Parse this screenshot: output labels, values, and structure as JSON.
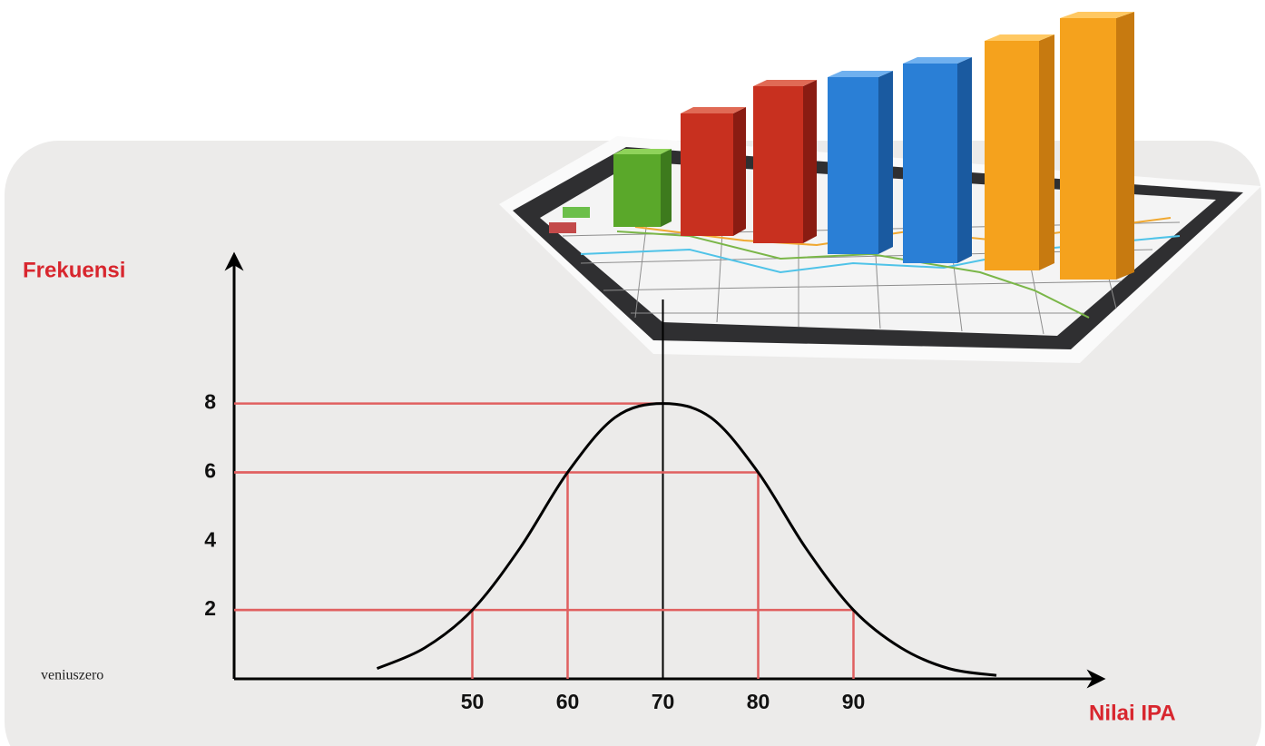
{
  "chart_data": {
    "type": "line",
    "y_label": "Frekuensi",
    "x_label": "Nilai IPA",
    "watermark": "veniuszero",
    "x": [
      40,
      45,
      50,
      55,
      60,
      65,
      70,
      75,
      80,
      85,
      90,
      95,
      100,
      105
    ],
    "series": [
      {
        "color": "#000000",
        "values": [
          0.3,
          0.9,
          2,
          3.8,
          6,
          7.6,
          8,
          7.6,
          6,
          3.8,
          2,
          0.9,
          0.3,
          0.1
        ]
      }
    ],
    "xlim": [
      25,
      115
    ],
    "ylim": [
      0,
      12
    ],
    "xticks": [
      50,
      60,
      70,
      80,
      90
    ],
    "yticks": [
      2,
      4,
      6,
      8
    ],
    "guide_color": "#e06060"
  }
}
